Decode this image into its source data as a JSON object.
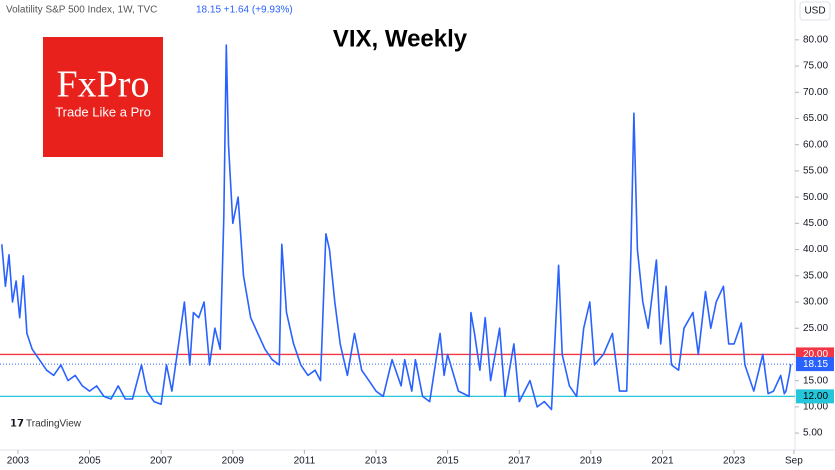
{
  "chart_data": {
    "type": "line",
    "title": "VIX, Weekly",
    "header_name": "Volatility S&P 500 Index, 1W, TVC",
    "header_quote": "18.15 +1.64 (+9.93%)",
    "currency": "USD",
    "logo_text": "FxPro",
    "logo_slogan": "Trade Like a Pro",
    "watermark": "TradingView",
    "x": [
      2002.55,
      2002.65,
      2002.75,
      2002.85,
      2002.95,
      2003.05,
      2003.15,
      2003.25,
      2003.4,
      2003.6,
      2003.8,
      2004.0,
      2004.2,
      2004.4,
      2004.6,
      2004.8,
      2005.0,
      2005.2,
      2005.4,
      2005.6,
      2005.8,
      2006.0,
      2006.2,
      2006.45,
      2006.6,
      2006.8,
      2007.0,
      2007.15,
      2007.3,
      2007.55,
      2007.65,
      2007.8,
      2007.9,
      2008.05,
      2008.2,
      2008.35,
      2008.5,
      2008.65,
      2008.75,
      2008.82,
      2008.88,
      2009.0,
      2009.15,
      2009.3,
      2009.5,
      2009.7,
      2009.9,
      2010.1,
      2010.3,
      2010.37,
      2010.5,
      2010.7,
      2010.9,
      2011.1,
      2011.3,
      2011.45,
      2011.6,
      2011.7,
      2011.85,
      2012.0,
      2012.2,
      2012.4,
      2012.6,
      2012.8,
      2013.0,
      2013.2,
      2013.45,
      2013.7,
      2013.8,
      2014.0,
      2014.1,
      2014.3,
      2014.5,
      2014.79,
      2014.9,
      2015.0,
      2015.3,
      2015.6,
      2015.65,
      2015.75,
      2015.9,
      2016.05,
      2016.2,
      2016.45,
      2016.6,
      2016.85,
      2017.0,
      2017.3,
      2017.5,
      2017.7,
      2017.9,
      2018.1,
      2018.2,
      2018.4,
      2018.6,
      2018.8,
      2018.97,
      2019.1,
      2019.35,
      2019.6,
      2019.8,
      2020.0,
      2020.12,
      2020.2,
      2020.3,
      2020.45,
      2020.6,
      2020.83,
      2020.95,
      2021.1,
      2021.25,
      2021.45,
      2021.6,
      2021.85,
      2022.0,
      2022.2,
      2022.35,
      2022.5,
      2022.7,
      2022.85,
      2023.0,
      2023.2,
      2023.3,
      2023.55,
      2023.8,
      2023.95,
      2024.1,
      2024.3,
      2024.4,
      2024.45,
      2024.55,
      2024.58
    ],
    "series": [
      {
        "name": "VIX",
        "color": "#2962ff",
        "values": [
          41,
          33,
          39,
          30,
          34,
          27,
          35,
          24,
          21,
          19,
          17,
          16,
          18,
          15,
          16,
          14,
          13,
          14,
          12,
          11.5,
          14,
          11.5,
          11.5,
          18,
          13,
          11,
          10.5,
          18,
          13,
          25,
          30,
          18,
          28,
          27,
          30,
          18,
          25,
          21,
          46,
          79,
          60,
          45,
          50,
          35,
          27,
          24,
          21,
          19,
          18,
          41,
          28,
          22,
          18,
          16,
          17,
          15,
          43,
          40,
          30,
          22,
          16,
          24,
          17,
          15,
          13,
          12,
          19,
          14,
          19,
          13,
          19,
          12,
          11,
          24,
          16,
          20,
          13,
          12,
          28,
          24,
          17,
          27,
          15,
          25,
          12,
          22,
          11,
          15,
          10,
          11,
          9.5,
          37,
          20,
          14,
          12,
          25,
          30,
          18,
          20,
          24,
          13,
          13,
          40,
          66,
          40,
          30,
          25,
          38,
          22,
          33,
          18,
          17,
          25,
          28,
          20,
          32,
          25,
          30,
          33,
          22,
          22,
          26,
          18,
          13,
          20,
          12.5,
          13,
          16,
          12.5,
          13,
          16.5,
          18.15
        ]
      }
    ],
    "hlines": [
      {
        "value": 20,
        "color": "#f23645",
        "label": "20.00"
      },
      {
        "value": 12,
        "color": "#26c6da",
        "label": "12.00"
      }
    ],
    "last_label": "18.15",
    "xlim": [
      2002.5,
      2024.7
    ],
    "xticks": [
      2003,
      2005,
      2007,
      2009,
      2011,
      2013,
      2015,
      2017,
      2019,
      2021,
      2023,
      {
        "value": 2024.67,
        "label": "Sep"
      }
    ],
    "ylim": [
      1.77,
      87.6
    ],
    "yticks": [
      {
        "value": 5,
        "label": "5.00"
      },
      {
        "value": 10,
        "label": "10.00"
      },
      {
        "value": 15,
        "label": "15.00"
      },
      {
        "value": 20,
        "label": "20.00"
      },
      {
        "value": 25,
        "label": "25.00"
      },
      {
        "value": 30,
        "label": "30.00"
      },
      {
        "value": 35,
        "label": "35.00"
      },
      {
        "value": 40,
        "label": "40.00"
      },
      {
        "value": 45,
        "label": "45.00"
      },
      {
        "value": 50,
        "label": "50.00"
      },
      {
        "value": 55,
        "label": "55.00"
      },
      {
        "value": 60,
        "label": "60.00"
      },
      {
        "value": 65,
        "label": "65.00"
      },
      {
        "value": 70,
        "label": "70.00"
      },
      {
        "value": 75,
        "label": "75.00"
      },
      {
        "value": 80,
        "label": "80.00"
      }
    ],
    "grid": false
  }
}
